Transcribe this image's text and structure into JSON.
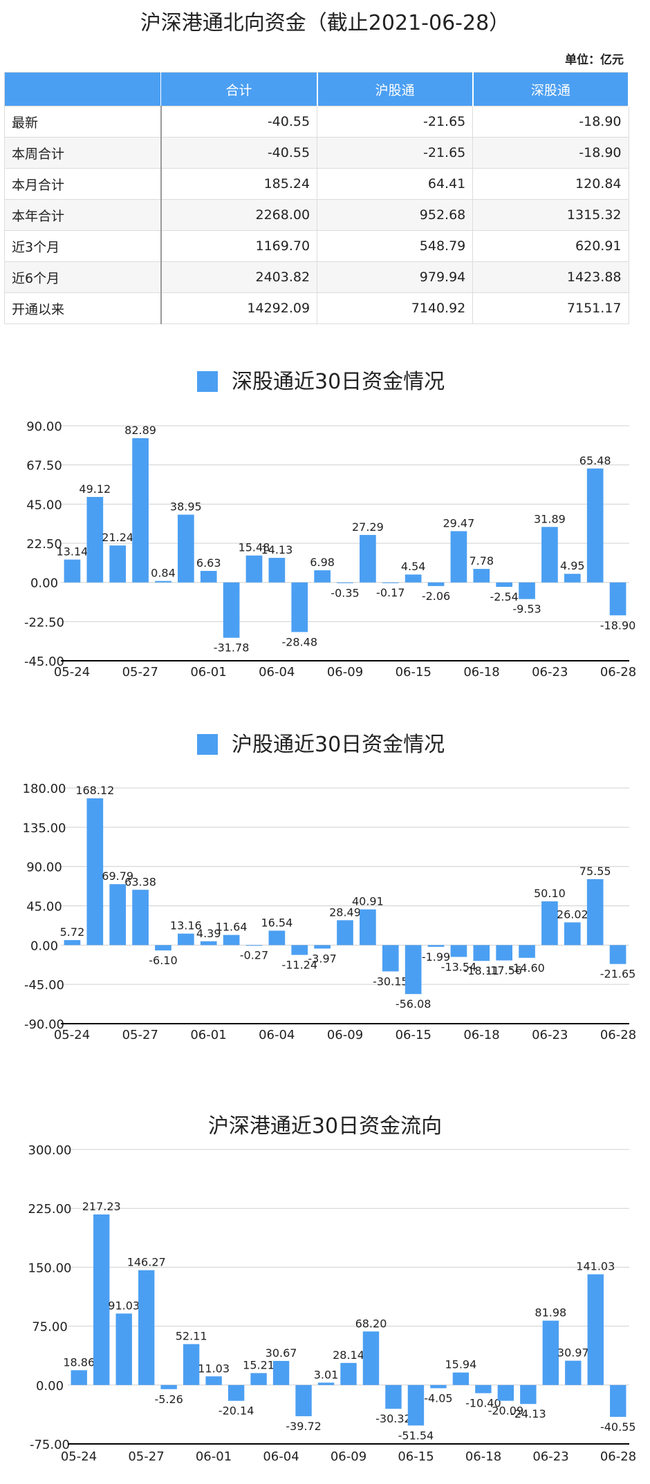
{
  "page": {
    "title": "沪深港通北向资金（截止2021-06-28）",
    "unit": "单位：亿元"
  },
  "summary_table": {
    "headers": [
      "",
      "合计",
      "沪股通",
      "深股通"
    ],
    "rows": [
      {
        "label": "最新",
        "values": [
          "-40.55",
          "-21.65",
          "-18.90"
        ]
      },
      {
        "label": "本周合计",
        "values": [
          "-40.55",
          "-21.65",
          "-18.90"
        ]
      },
      {
        "label": "本月合计",
        "values": [
          "185.24",
          "64.41",
          "120.84"
        ]
      },
      {
        "label": "本年合计",
        "values": [
          "2268.00",
          "952.68",
          "1315.32"
        ]
      },
      {
        "label": "近3个月",
        "values": [
          "1169.70",
          "548.79",
          "620.91"
        ]
      },
      {
        "label": "近6个月",
        "values": [
          "2403.82",
          "979.94",
          "1423.88"
        ]
      },
      {
        "label": "开通以来",
        "values": [
          "14292.09",
          "7140.92",
          "7151.17"
        ]
      }
    ]
  },
  "colors": {
    "bar": "#4b9ff2",
    "header": "#4b9ff2",
    "grid": "#d0d0d0",
    "axis": "#000000"
  },
  "chart_data": [
    {
      "type": "bar",
      "title": "深股通近30日资金情况",
      "legend": "深股通近30日资金情况",
      "yticks": [
        "90.00",
        "67.50",
        "45.00",
        "22.50",
        "0.00",
        "-22.50",
        "-45.00"
      ],
      "ylim": [
        -45,
        90
      ],
      "xticks": [
        "05-24",
        "05-27",
        "06-01",
        "06-04",
        "06-09",
        "06-15",
        "06-18",
        "06-23",
        "06-28"
      ],
      "values": [
        13.14,
        49.12,
        21.24,
        82.89,
        0.84,
        38.95,
        6.63,
        -31.78,
        15.48,
        14.13,
        -28.48,
        6.98,
        -0.35,
        27.29,
        -0.17,
        4.54,
        -2.06,
        29.47,
        7.78,
        -2.54,
        -9.53,
        31.89,
        4.95,
        65.48,
        -18.9
      ],
      "labels": [
        "13.14",
        "49.12",
        "21.24",
        "82.89",
        "0.84",
        "38.95",
        "6.63",
        "-31.78",
        "15.48",
        "14.13",
        "-28.48",
        "6.98",
        "-0.35",
        "27.29",
        "-0.17",
        "4.54",
        "-2.06",
        "29.47",
        "7.78",
        "-2.54",
        "-9.53",
        "31.89",
        "4.95",
        "65.48",
        "-18.90"
      ]
    },
    {
      "type": "bar",
      "title": "沪股通近30日资金情况",
      "legend": "沪股通近30日资金情况",
      "yticks": [
        "180.00",
        "135.00",
        "90.00",
        "45.00",
        "0.00",
        "-45.00",
        "-90.00"
      ],
      "ylim": [
        -90,
        180
      ],
      "xticks": [
        "05-24",
        "05-27",
        "06-01",
        "06-04",
        "06-09",
        "06-15",
        "06-18",
        "06-23",
        "06-28"
      ],
      "values": [
        5.72,
        168.12,
        69.79,
        63.38,
        -6.1,
        13.16,
        4.39,
        11.64,
        -0.27,
        16.54,
        -11.24,
        -3.97,
        28.49,
        40.91,
        -30.15,
        -56.08,
        -1.99,
        -13.54,
        -18.11,
        -17.56,
        -14.6,
        50.1,
        26.02,
        75.55,
        -21.65
      ],
      "labels": [
        "5.72",
        "168.12",
        "69.79",
        "63.38",
        "-6.10",
        "13.16",
        "4.39",
        "11.64",
        "-0.27",
        "16.54",
        "-11.24",
        "-3.97",
        "28.49",
        "40.91",
        "-30.15",
        "-56.08",
        "-1.99",
        "-13.54",
        "-18.11",
        "-17.56",
        "-14.60",
        "50.10",
        "26.02",
        "75.55",
        "-21.65"
      ]
    },
    {
      "type": "bar",
      "title": "沪深港通近30日资金流向",
      "yticks": [
        "300.00",
        "225.00",
        "150.00",
        "75.00",
        "0.00",
        "-75.00"
      ],
      "ylim": [
        -75,
        300
      ],
      "xticks": [
        "05-24",
        "05-27",
        "06-01",
        "06-04",
        "06-09",
        "06-15",
        "06-18",
        "06-23",
        "06-28"
      ],
      "values": [
        18.86,
        217.23,
        91.03,
        146.27,
        -5.26,
        52.11,
        11.03,
        -20.14,
        15.21,
        30.67,
        -39.72,
        3.01,
        28.14,
        68.2,
        -30.32,
        -51.54,
        -4.05,
        15.94,
        -10.4,
        -20.09,
        -24.13,
        81.98,
        30.97,
        141.03,
        -40.55
      ],
      "labels": [
        "18.86",
        "217.23",
        "91.03",
        "146.27",
        "-5.26",
        "52.11",
        "11.03",
        "-20.14",
        "15.21",
        "30.67",
        "-39.72",
        "3.01",
        "28.14",
        "68.20",
        "-30.32",
        "-51.54",
        "-4.05",
        "15.94",
        "-10.40",
        "-20.09",
        "-24.13",
        "81.98",
        "30.97",
        "141.03",
        "-40.55"
      ]
    }
  ]
}
